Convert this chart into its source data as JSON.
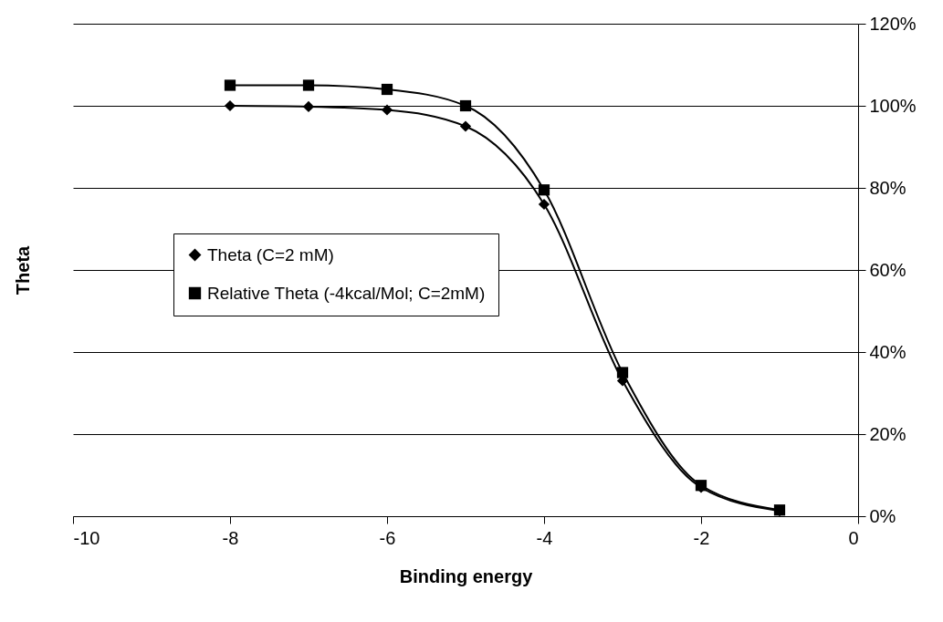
{
  "chart_data": {
    "type": "line",
    "xlabel": "Binding energy",
    "ylabel": "Theta",
    "x": [
      -8,
      -7,
      -6,
      -5,
      -4,
      -3,
      -2,
      -1
    ],
    "series": [
      {
        "name": "Theta (C=2 mM)",
        "color": "#000000",
        "marker": "diamond",
        "values": [
          100,
          99.8,
          99,
          95,
          76,
          33,
          7,
          1.3
        ]
      },
      {
        "name": "Relative Theta (-4kcal/Mol; C=2mM)",
        "color": "#000000",
        "marker": "square",
        "values": [
          105,
          105,
          104,
          100,
          79.5,
          35,
          7.5,
          1.5
        ]
      }
    ],
    "xlim": [
      -10,
      0
    ],
    "xticks": [
      -10,
      -8,
      -6,
      -4,
      -2,
      0
    ],
    "ylim": [
      0,
      120
    ],
    "yticks": [
      {
        "value": 0,
        "label": "0%"
      },
      {
        "value": 20,
        "label": "20%"
      },
      {
        "value": 40,
        "label": "40%"
      },
      {
        "value": 60,
        "label": "60%"
      },
      {
        "value": 80,
        "label": "80%"
      },
      {
        "value": 100,
        "label": "100%"
      },
      {
        "value": 120,
        "label": "120%"
      }
    ],
    "grid": "y",
    "legend": "left",
    "line_style": "solid"
  }
}
